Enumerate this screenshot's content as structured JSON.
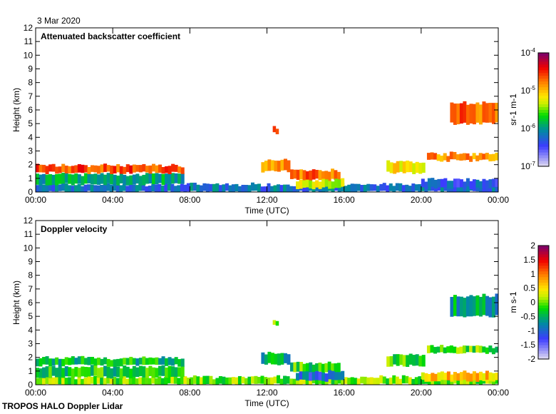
{
  "date": "3 Mar 2020",
  "footer": "TROPOS HALO Doppler Lidar",
  "chart_data": [
    {
      "type": "heatmap",
      "title": "Attenuated backscatter coefficient",
      "xlabel": "Time (UTC)",
      "ylabel": "Height (km)",
      "xlim": [
        0,
        24
      ],
      "ylim": [
        0,
        12
      ],
      "xticks": [
        "00:00",
        "04:00",
        "08:00",
        "12:00",
        "16:00",
        "20:00",
        "00:00"
      ],
      "yticks": [
        "0",
        "1",
        "2",
        "3",
        "4",
        "5",
        "6",
        "7",
        "8",
        "9",
        "10",
        "11",
        "12"
      ],
      "colorbar": {
        "label": "sr-1 m-1",
        "scale": "log",
        "range": [
          -7,
          -4
        ],
        "ticks": [
          "10-7",
          "10-6",
          "10-5",
          "10-4"
        ]
      },
      "features": [
        {
          "name": "boundary-layer-aerosol",
          "t": [
            0,
            24
          ],
          "z": [
            0,
            0.55
          ],
          "value": -6.2
        },
        {
          "name": "aerosol-top-morning",
          "t": [
            0,
            7.7
          ],
          "z": [
            0.55,
            1.3
          ],
          "value": -5.9
        },
        {
          "name": "cloud-morning",
          "t": [
            0,
            7.7
          ],
          "z": [
            1.4,
            1.95
          ],
          "value": -4.6
        },
        {
          "name": "cloud-noon",
          "t": [
            11.7,
            13.2
          ],
          "z": [
            1.5,
            2.3
          ],
          "value": -4.9
        },
        {
          "name": "cloud-afternoon",
          "t": [
            13.2,
            15.8
          ],
          "z": [
            0.9,
            1.6
          ],
          "value": -4.7
        },
        {
          "name": "virga-afternoon",
          "t": [
            13.5,
            16
          ],
          "z": [
            0.3,
            0.9
          ],
          "value": -5.3
        },
        {
          "name": "cloud-evening",
          "t": [
            18.2,
            20.2
          ],
          "z": [
            1.4,
            2.2
          ],
          "value": -5.1
        },
        {
          "name": "cloud-late",
          "t": [
            20.3,
            24
          ],
          "z": [
            2.3,
            2.8
          ],
          "value": -4.8
        },
        {
          "name": "cloud-high",
          "t": [
            21.5,
            24
          ],
          "z": [
            5.0,
            6.5
          ],
          "value": -4.7
        },
        {
          "name": "cloud-isolated",
          "t": [
            12.3,
            12.6
          ],
          "z": [
            4.3,
            4.7
          ],
          "value": -4.6
        },
        {
          "name": "aerosol-night",
          "t": [
            20,
            24
          ],
          "z": [
            0.3,
            0.9
          ],
          "value": -6.3
        }
      ]
    },
    {
      "type": "heatmap",
      "title": "Doppler velocity",
      "xlabel": "Time (UTC)",
      "ylabel": "Height (km)",
      "xlim": [
        0,
        24
      ],
      "ylim": [
        0,
        12
      ],
      "xticks": [
        "00:00",
        "04:00",
        "08:00",
        "12:00",
        "16:00",
        "20:00",
        "00:00"
      ],
      "yticks": [
        "0",
        "1",
        "2",
        "3",
        "4",
        "5",
        "6",
        "7",
        "8",
        "9",
        "10",
        "11",
        "12"
      ],
      "colorbar": {
        "label": "m s-1",
        "scale": "linear",
        "range": [
          -2,
          2
        ],
        "ticks": [
          "-2",
          "-1.5",
          "-1",
          "-0.5",
          "0",
          "0.5",
          "1",
          "1.5",
          "2"
        ]
      },
      "features": [
        {
          "name": "boundary-layer",
          "t": [
            0,
            24
          ],
          "z": [
            0,
            0.55
          ],
          "value": 0.0
        },
        {
          "name": "aerosol-top-morning",
          "t": [
            0,
            7.7
          ],
          "z": [
            0.55,
            1.3
          ],
          "value": -0.3
        },
        {
          "name": "cloud-morning",
          "t": [
            0,
            7.7
          ],
          "z": [
            1.4,
            1.95
          ],
          "value": -0.4
        },
        {
          "name": "cloud-noon",
          "t": [
            11.7,
            13.2
          ],
          "z": [
            1.5,
            2.3
          ],
          "value": -0.5
        },
        {
          "name": "cloud-afternoon",
          "t": [
            13.2,
            15.8
          ],
          "z": [
            0.9,
            1.6
          ],
          "value": -0.2
        },
        {
          "name": "virga-afternoon",
          "t": [
            13.5,
            16
          ],
          "z": [
            0.3,
            0.9
          ],
          "value": -1.0
        },
        {
          "name": "cloud-evening",
          "t": [
            18.2,
            20.2
          ],
          "z": [
            1.4,
            2.2
          ],
          "value": -0.1
        },
        {
          "name": "cloud-late",
          "t": [
            20.3,
            24
          ],
          "z": [
            2.3,
            2.8
          ],
          "value": -0.1
        },
        {
          "name": "cloud-high",
          "t": [
            21.5,
            24
          ],
          "z": [
            5.0,
            6.5
          ],
          "value": -0.6
        },
        {
          "name": "cloud-isolated",
          "t": [
            12.3,
            12.6
          ],
          "z": [
            4.3,
            4.7
          ],
          "value": 0.0
        },
        {
          "name": "aerosol-night",
          "t": [
            20,
            24
          ],
          "z": [
            0.3,
            0.9
          ],
          "value": 0.6
        }
      ]
    }
  ]
}
